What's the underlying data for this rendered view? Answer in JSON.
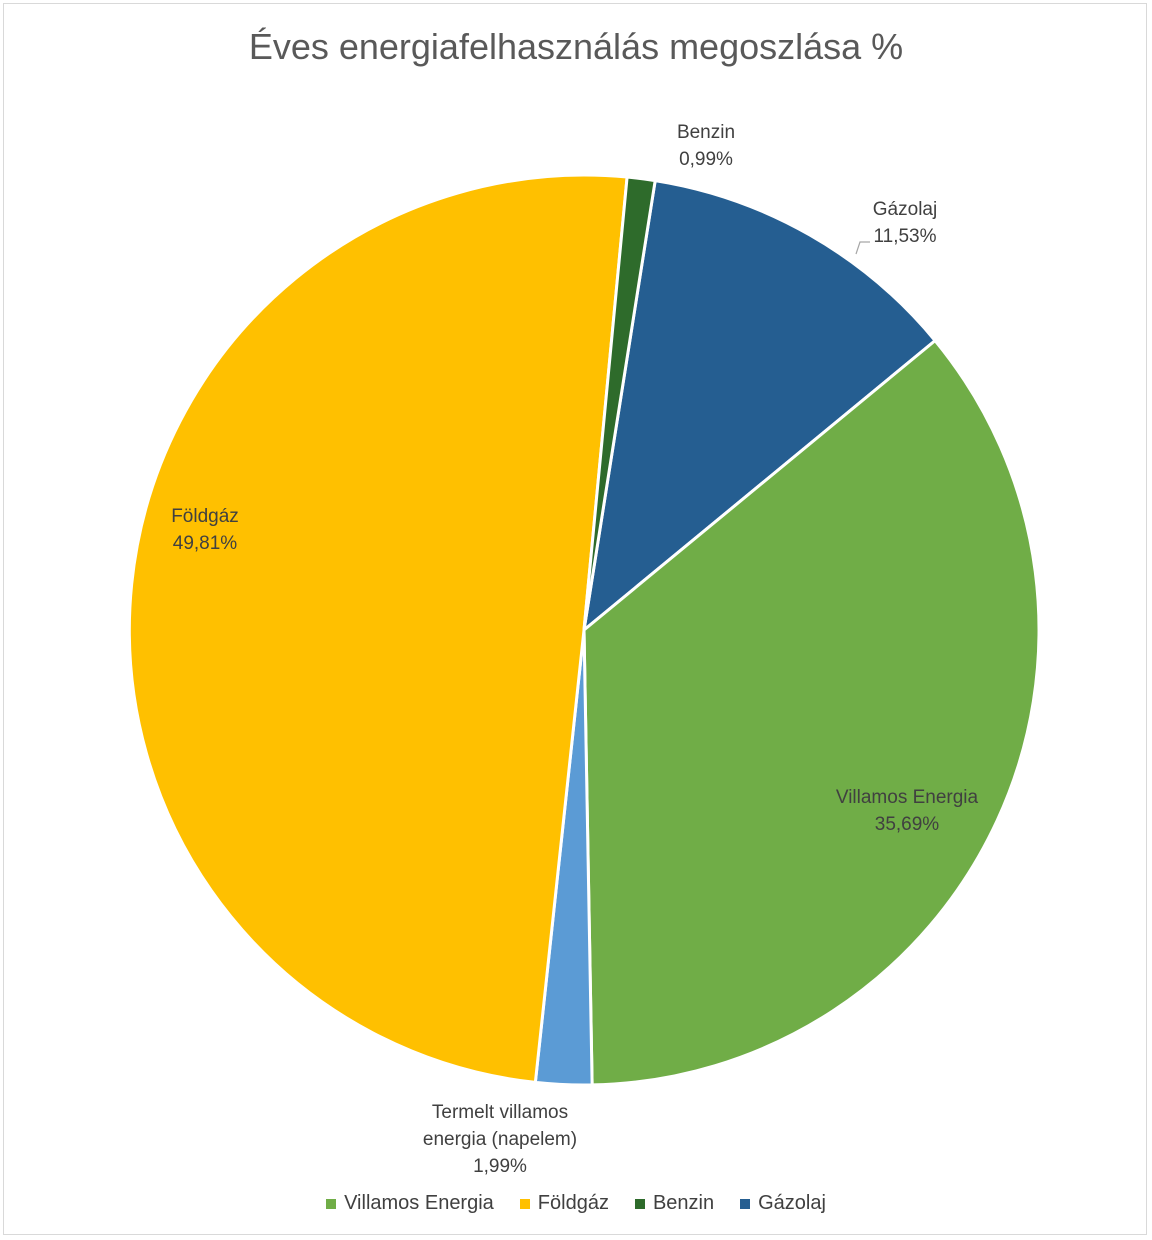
{
  "chart_data": {
    "type": "pie",
    "title": "Éves energiafelhasználás megoszlása %",
    "slices": [
      {
        "label": "Gázolaj",
        "value": 11.53,
        "display": "11,53%",
        "color": "#255e91"
      },
      {
        "label": "Villamos Energia",
        "value": 35.69,
        "display": "35,69%",
        "color": "#70ad47"
      },
      {
        "label": "Termelt villamos energia (napelem)",
        "label_lines": [
          "Termelt villamos",
          "energia (napelem)"
        ],
        "value": 1.99,
        "display": "1,99%",
        "color": "#5b9bd5"
      },
      {
        "label": "Földgáz",
        "value": 49.81,
        "display": "49,81%",
        "color": "#ffc000"
      },
      {
        "label": "Benzin",
        "value": 0.99,
        "display": "0,99%",
        "color": "#2e6b2b"
      }
    ],
    "legend": [
      {
        "label": "Villamos Energia",
        "color": "#70ad47"
      },
      {
        "label": "Földgáz",
        "color": "#ffc000"
      },
      {
        "label": "Benzin",
        "color": "#2e6b2b"
      },
      {
        "label": "Gázolaj",
        "color": "#255e91"
      }
    ],
    "legend_position": "bottom"
  }
}
